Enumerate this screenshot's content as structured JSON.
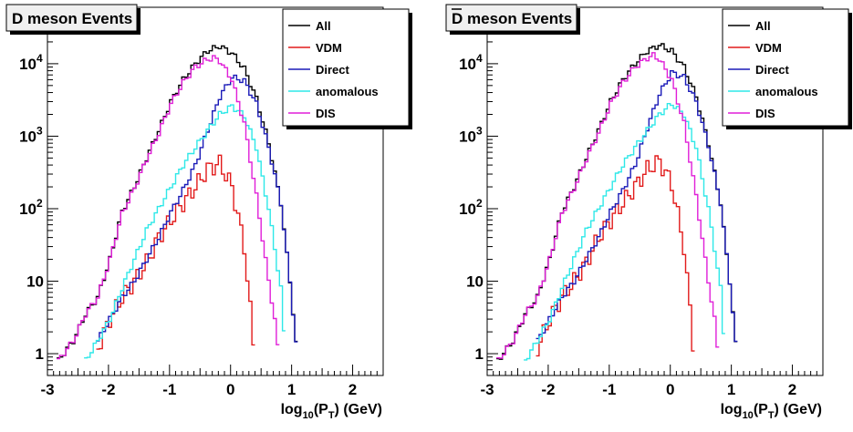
{
  "chart_data": [
    {
      "type": "line",
      "title": "D meson Events",
      "title_overline": false,
      "xlabel": {
        "base": "log",
        "sub": "10",
        "mid": "(P",
        "sub2": "T",
        "end": ") (GeV)"
      },
      "ylabel": "",
      "xlim": [
        -3,
        2.5
      ],
      "ylim": [
        0.5,
        60000
      ],
      "yscale": "log",
      "grid": false,
      "legend_position": "top-right",
      "xticks": [
        "-3",
        "-2",
        "-1",
        "0",
        "1",
        "2"
      ],
      "yticks": [
        {
          "label": "1",
          "exp": ""
        },
        {
          "label": "10",
          "exp": ""
        },
        {
          "label": "10",
          "exp": "2"
        },
        {
          "label": "10",
          "exp": "3"
        },
        {
          "label": "10",
          "exp": "4"
        }
      ],
      "series": [
        {
          "name": "All",
          "color": "#000000",
          "x": [
            -2.85,
            -2.6,
            -2.4,
            -2.2,
            -2.0,
            -1.8,
            -1.6,
            -1.4,
            -1.2,
            -1.0,
            -0.8,
            -0.6,
            -0.4,
            -0.2,
            0.0,
            0.2,
            0.4,
            0.6,
            0.8,
            0.95,
            1.1
          ],
          "y": [
            0.8,
            1.5,
            3.5,
            6,
            20,
            90,
            200,
            500,
            1200,
            3000,
            6000,
            10000,
            15000,
            17500,
            14000,
            8500,
            3300,
            800,
            120,
            10,
            0.5
          ]
        },
        {
          "name": "VDM",
          "color": "#e21b1b",
          "x": [
            -2.2,
            -2.0,
            -1.8,
            -1.6,
            -1.4,
            -1.2,
            -1.0,
            -0.8,
            -0.6,
            -0.4,
            -0.2,
            0.0,
            0.2,
            0.3,
            0.4
          ],
          "y": [
            1.2,
            3,
            6,
            10,
            18,
            40,
            70,
            120,
            200,
            350,
            420,
            200,
            30,
            4,
            0.5
          ]
        },
        {
          "name": "Direct",
          "color": "#1a1ab8",
          "x": [
            -2.2,
            -2.0,
            -1.8,
            -1.6,
            -1.4,
            -1.2,
            -1.0,
            -0.8,
            -0.6,
            -0.4,
            -0.2,
            0.0,
            0.2,
            0.4,
            0.6,
            0.8,
            0.95,
            1.1
          ],
          "y": [
            1.5,
            3,
            6,
            10,
            20,
            40,
            90,
            180,
            400,
            1200,
            3500,
            6500,
            5800,
            2800,
            700,
            120,
            10,
            0.5
          ]
        },
        {
          "name": "anomalous",
          "color": "#2ee8e8",
          "x": [
            -2.4,
            -2.2,
            -2.0,
            -1.8,
            -1.6,
            -1.4,
            -1.2,
            -1.0,
            -0.8,
            -0.6,
            -0.4,
            -0.2,
            0.0,
            0.2,
            0.4,
            0.6,
            0.8,
            0.9
          ],
          "y": [
            0.8,
            1.5,
            3,
            8,
            20,
            50,
            100,
            200,
            400,
            700,
            1200,
            2000,
            2600,
            1900,
            700,
            100,
            8,
            0.5
          ]
        },
        {
          "name": "DIS",
          "color": "#e01fd8",
          "x": [
            -2.85,
            -2.6,
            -2.4,
            -2.2,
            -2.0,
            -1.8,
            -1.6,
            -1.4,
            -1.2,
            -1.0,
            -0.8,
            -0.6,
            -0.4,
            -0.3,
            -0.2,
            0.0,
            0.2,
            0.4,
            0.6,
            0.7,
            0.8
          ],
          "y": [
            0.8,
            1.5,
            3.5,
            6,
            20,
            85,
            190,
            480,
            1100,
            2800,
            5500,
            9000,
            11500,
            12000,
            11000,
            6000,
            1500,
            150,
            10,
            3,
            0.5
          ]
        }
      ]
    },
    {
      "type": "line",
      "title": "D meson Events",
      "title_overline": true,
      "xlabel": {
        "base": "log",
        "sub": "10",
        "mid": "(P",
        "sub2": "T",
        "end": ") (GeV)"
      },
      "ylabel": "",
      "xlim": [
        -3,
        2.5
      ],
      "ylim": [
        0.5,
        60000
      ],
      "yscale": "log",
      "grid": false,
      "legend_position": "top-right",
      "xticks": [
        "-3",
        "-2",
        "-1",
        "0",
        "1",
        "2"
      ],
      "yticks": [
        {
          "label": "1",
          "exp": ""
        },
        {
          "label": "10",
          "exp": ""
        },
        {
          "label": "10",
          "exp": "2"
        },
        {
          "label": "10",
          "exp": "3"
        },
        {
          "label": "10",
          "exp": "4"
        }
      ],
      "series": [
        {
          "name": "All",
          "color": "#000000",
          "x": [
            -2.85,
            -2.6,
            -2.4,
            -2.2,
            -2.0,
            -1.8,
            -1.6,
            -1.4,
            -1.2,
            -1.0,
            -0.8,
            -0.6,
            -0.4,
            -0.2,
            0.0,
            0.2,
            0.4,
            0.6,
            0.8,
            0.95,
            1.1
          ],
          "y": [
            0.8,
            1.5,
            3.5,
            6,
            20,
            90,
            200,
            500,
            1200,
            3000,
            6000,
            10000,
            15000,
            18000,
            15000,
            9000,
            3500,
            800,
            120,
            10,
            0.5
          ]
        },
        {
          "name": "VDM",
          "color": "#e21b1b",
          "x": [
            -2.2,
            -2.0,
            -1.8,
            -1.6,
            -1.4,
            -1.2,
            -1.0,
            -0.8,
            -0.6,
            -0.4,
            -0.2,
            0.0,
            0.2,
            0.3,
            0.4
          ],
          "y": [
            1.2,
            3,
            6,
            10,
            18,
            40,
            70,
            120,
            200,
            350,
            450,
            220,
            30,
            4,
            0.5
          ]
        },
        {
          "name": "Direct",
          "color": "#1a1ab8",
          "x": [
            -2.2,
            -2.0,
            -1.8,
            -1.6,
            -1.4,
            -1.2,
            -1.0,
            -0.8,
            -0.6,
            -0.4,
            -0.2,
            0.0,
            0.2,
            0.4,
            0.6,
            0.8,
            0.95,
            1.1
          ],
          "y": [
            1.5,
            3,
            6,
            10,
            20,
            40,
            90,
            180,
            400,
            1300,
            3800,
            7500,
            6500,
            3000,
            750,
            120,
            10,
            0.5
          ]
        },
        {
          "name": "anomalous",
          "color": "#2ee8e8",
          "x": [
            -2.4,
            -2.2,
            -2.0,
            -1.8,
            -1.6,
            -1.4,
            -1.2,
            -1.0,
            -0.8,
            -0.6,
            -0.4,
            -0.2,
            0.0,
            0.2,
            0.4,
            0.6,
            0.8,
            0.9
          ],
          "y": [
            0.8,
            1.5,
            3,
            8,
            20,
            50,
            100,
            200,
            400,
            700,
            1200,
            2000,
            2800,
            2000,
            700,
            100,
            8,
            0.5
          ]
        },
        {
          "name": "DIS",
          "color": "#e01fd8",
          "x": [
            -2.85,
            -2.6,
            -2.4,
            -2.2,
            -2.0,
            -1.8,
            -1.6,
            -1.4,
            -1.2,
            -1.0,
            -0.8,
            -0.6,
            -0.4,
            -0.3,
            -0.2,
            0.0,
            0.2,
            0.4,
            0.6,
            0.7,
            0.8
          ],
          "y": [
            0.8,
            1.5,
            3.5,
            6,
            20,
            85,
            190,
            480,
            1100,
            2800,
            5500,
            9000,
            12000,
            13000,
            11500,
            6000,
            1500,
            150,
            10,
            3,
            0.5
          ]
        }
      ]
    }
  ]
}
